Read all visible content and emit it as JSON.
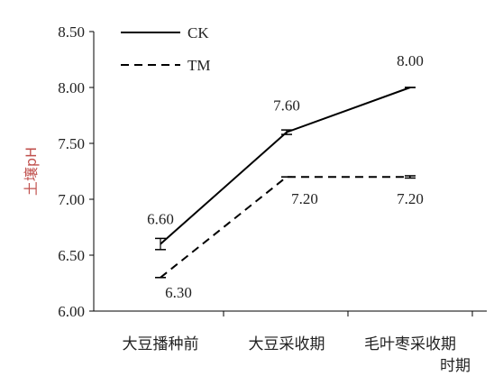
{
  "chart_data": {
    "type": "line",
    "title": "",
    "xlabel": "",
    "ylabel": "土壤pH",
    "ylim": [
      6.0,
      8.5
    ],
    "yticks": [
      "6.00",
      "6.50",
      "7.00",
      "7.50",
      "8.00",
      "8.50"
    ],
    "categories": [
      [
        "大豆播种前"
      ],
      [
        "大豆采收期"
      ],
      [
        "毛叶枣采收期",
        "时期"
      ]
    ],
    "series": [
      {
        "name": "CK",
        "style": "solid",
        "values": [
          6.6,
          7.6,
          8.0
        ],
        "errors": [
          0.05,
          0.02,
          0.0
        ],
        "labels": [
          "6.60",
          "7.60",
          "8.00"
        ]
      },
      {
        "name": "TM",
        "style": "dashed",
        "values": [
          6.3,
          7.2,
          7.2
        ],
        "errors": [
          0.0,
          0.0,
          0.01
        ],
        "labels": [
          "6.30",
          "7.20",
          "7.20"
        ]
      }
    ],
    "legend_position": "top-left",
    "grid": false,
    "colors": {
      "line": "#000000",
      "axis": "#000000",
      "ylabel": "#c0504d"
    }
  }
}
